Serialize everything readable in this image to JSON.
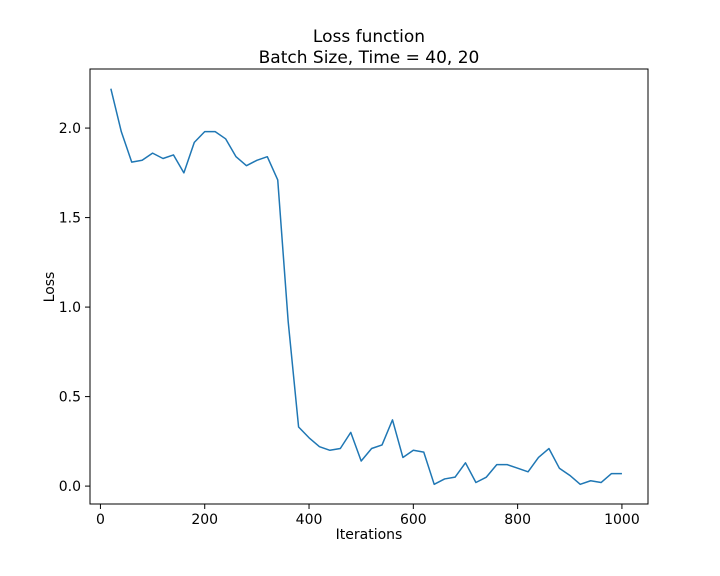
{
  "chart_data": {
    "type": "line",
    "title": "Loss function",
    "subtitle": "Batch Size, Time = 40, 20",
    "xlabel": "Iterations",
    "ylabel": "Loss",
    "xlim": [
      -20,
      1050
    ],
    "ylim": [
      -0.1,
      2.33
    ],
    "xticks": [
      0,
      200,
      400,
      600,
      800,
      1000
    ],
    "xtick_labels": [
      "0",
      "200",
      "400",
      "600",
      "800",
      "1000"
    ],
    "yticks": [
      0.0,
      0.5,
      1.0,
      1.5,
      2.0
    ],
    "ytick_labels": [
      "0.0",
      "0.5",
      "1.0",
      "1.5",
      "2.0"
    ],
    "grid": false,
    "series": [
      {
        "color": "#1f77b4",
        "x": [
          20,
          40,
          60,
          80,
          100,
          120,
          140,
          160,
          180,
          200,
          220,
          240,
          260,
          280,
          300,
          320,
          340,
          360,
          380,
          400,
          420,
          440,
          460,
          480,
          500,
          520,
          540,
          560,
          580,
          600,
          620,
          640,
          660,
          680,
          700,
          720,
          740,
          760,
          780,
          800,
          820,
          840,
          860,
          880,
          900,
          920,
          940,
          960,
          980,
          1000
        ],
        "y": [
          2.22,
          1.98,
          1.81,
          1.82,
          1.86,
          1.83,
          1.85,
          1.75,
          1.92,
          1.98,
          1.98,
          1.94,
          1.84,
          1.79,
          1.82,
          1.84,
          1.71,
          0.92,
          0.33,
          0.27,
          0.22,
          0.2,
          0.21,
          0.3,
          0.14,
          0.21,
          0.23,
          0.37,
          0.16,
          0.2,
          0.19,
          0.01,
          0.04,
          0.05,
          0.13,
          0.02,
          0.05,
          0.12,
          0.12,
          0.1,
          0.08,
          0.16,
          0.21,
          0.1,
          0.06,
          0.01,
          0.03,
          0.02,
          0.07,
          0.07
        ]
      }
    ]
  }
}
